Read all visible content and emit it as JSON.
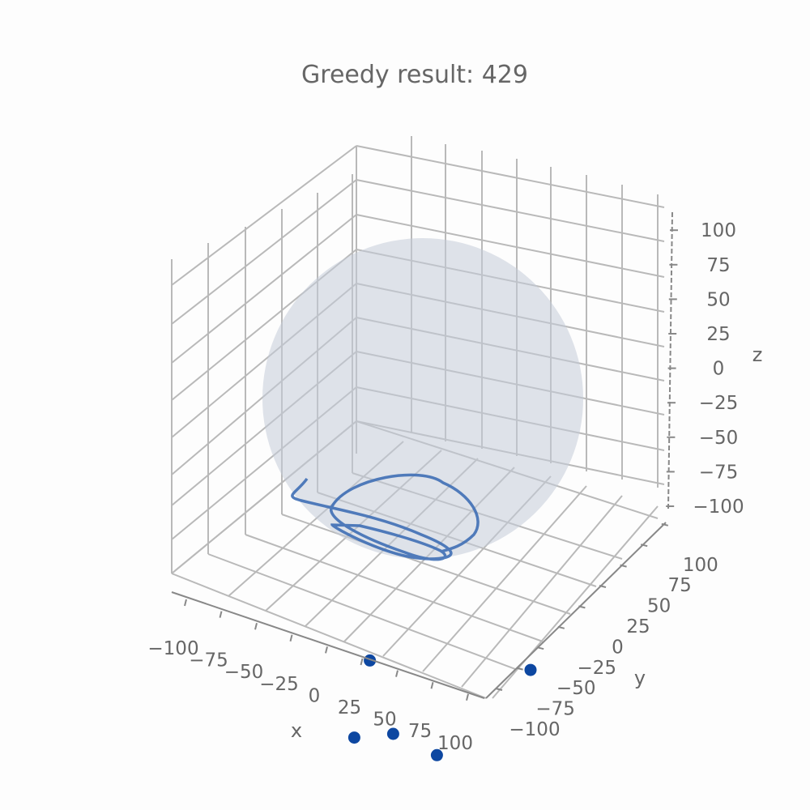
{
  "chart_data": {
    "type": "scatter",
    "projection": "3d",
    "title": "Greedy result: 429",
    "xlabel": "x",
    "ylabel": "y",
    "zlabel": "z",
    "xlim": [
      -100,
      100
    ],
    "ylim": [
      -100,
      100
    ],
    "zlim": [
      -100,
      100
    ],
    "xticks": [
      "−100",
      "−75",
      "−50",
      "−25",
      "0",
      "25",
      "50",
      "75",
      "100"
    ],
    "yticks": [
      "−100",
      "−75",
      "−50",
      "−25",
      "0",
      "25",
      "50",
      "75",
      "100"
    ],
    "zticks": [
      "−100",
      "−75",
      "−50",
      "−25",
      "0",
      "25",
      "50",
      "75",
      "100"
    ],
    "grid": true,
    "sphere_radius": 100,
    "colors": {
      "points": "#0d47a1",
      "path": "#3f6fb5",
      "sphere": "#c5ccd8",
      "grid": "#b9b9b9",
      "text": "#666666"
    },
    "points": [
      {
        "x": -80,
        "y": 20,
        "z": -92
      },
      {
        "x": 60,
        "y": 65,
        "z": -90
      },
      {
        "x": -20,
        "y": -60,
        "z": -90
      },
      {
        "x": 5,
        "y": -40,
        "z": -92
      },
      {
        "x": 55,
        "y": -40,
        "z": -95
      }
    ]
  }
}
